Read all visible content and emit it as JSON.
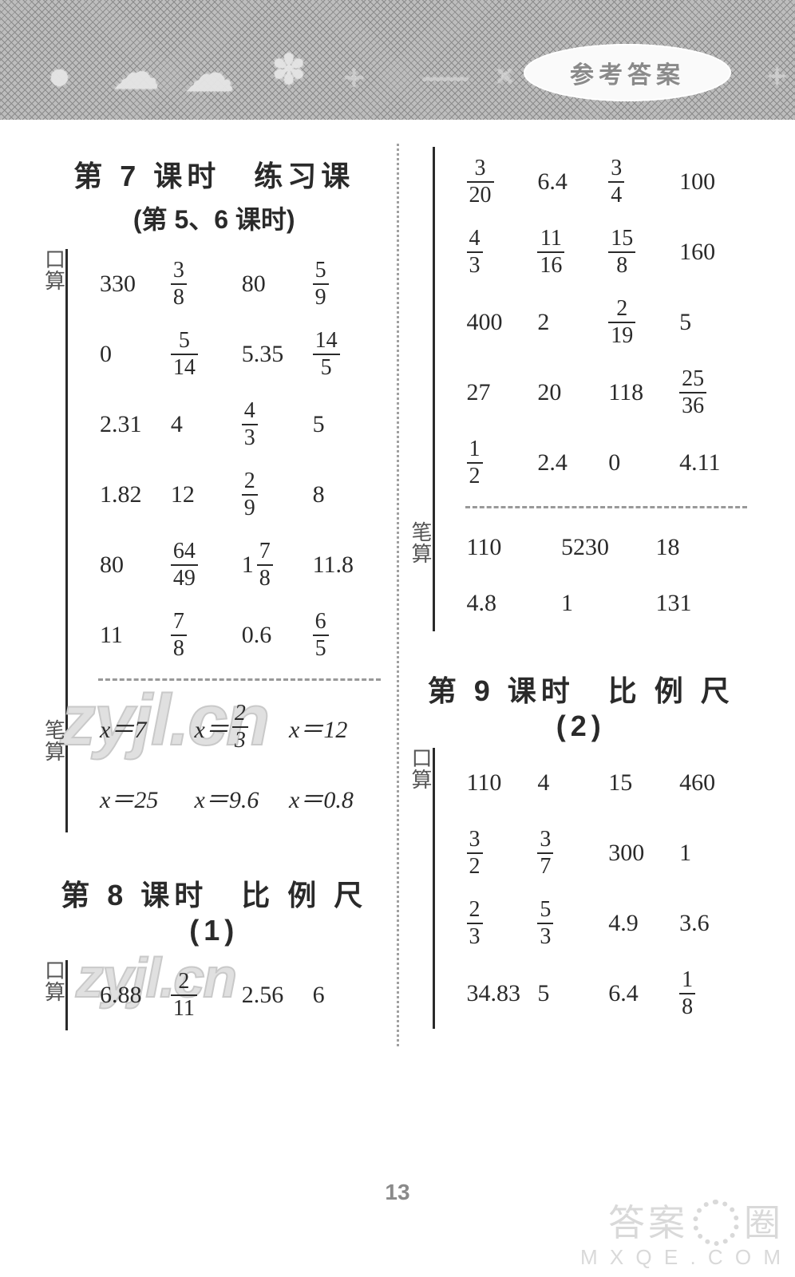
{
  "banner": {
    "pill_label": "参考答案",
    "shapes": [
      "●",
      "☁",
      "☁",
      "✽",
      "+",
      "—",
      "×",
      "+"
    ]
  },
  "page_number": "13",
  "site_watermark": {
    "line1_prefix": "答案",
    "line1_suffix": "圈",
    "line2": "M X Q E . C O M"
  },
  "watermarks": {
    "w1": "zyjl.cn",
    "w2": "zyjl.cn"
  },
  "left": {
    "sec7": {
      "title": "第 7 课时　练习课",
      "subtitle": "(第 5、6 课时)",
      "kousuan_label": "口算",
      "bisuan_label": "笔算",
      "kousuan_rows": [
        [
          "330",
          "3/8",
          "80",
          "5/9"
        ],
        [
          "0",
          "5/14",
          "5.35",
          "14/5"
        ],
        [
          "2.31",
          "4",
          "4/3",
          "5"
        ],
        [
          "1.82",
          "12",
          "2/9",
          "8"
        ],
        [
          "80",
          "64/49",
          "1 7/8",
          "11.8"
        ],
        [
          "11",
          "7/8",
          "0.6",
          "6/5"
        ]
      ],
      "bisuan_rows": [
        [
          "x＝7",
          "x＝ 2/3",
          "x＝12"
        ],
        [
          "x＝25",
          "x＝9.6",
          "x＝0.8"
        ]
      ]
    },
    "sec8": {
      "title": "第 8 课时　比 例 尺 (1)",
      "kousuan_label": "口算",
      "kousuan_rows": [
        [
          "6.88",
          "2/11",
          "2.56",
          "6"
        ]
      ]
    }
  },
  "right": {
    "sec8_cont": {
      "kousuan_label": "",
      "kousuan_rows": [
        [
          "3/20",
          "6.4",
          "3/4",
          "100"
        ],
        [
          "4/3",
          "11/16",
          "15/8",
          "160"
        ],
        [
          "400",
          "2",
          "2/19",
          "5"
        ],
        [
          "27",
          "20",
          "118",
          "25/36"
        ],
        [
          "1/2",
          "2.4",
          "0",
          "4.11"
        ]
      ],
      "bisuan_label": "笔算",
      "bisuan_rows": [
        [
          "110",
          "5230",
          "18"
        ],
        [
          "4.8",
          "1",
          "131"
        ]
      ]
    },
    "sec9": {
      "title": "第 9 课时　比 例 尺 (2)",
      "kousuan_label": "口算",
      "kousuan_rows": [
        [
          "110",
          "4",
          "15",
          "460"
        ],
        [
          "3/2",
          "3/7",
          "300",
          "1"
        ],
        [
          "2/3",
          "5/3",
          "4.9",
          "3.6"
        ],
        [
          "34.83",
          "5",
          "6.4",
          "1/8"
        ]
      ]
    }
  }
}
